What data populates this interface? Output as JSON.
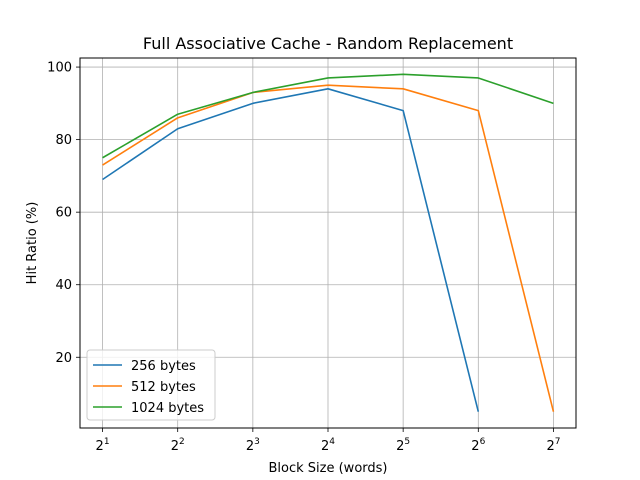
{
  "chart_data": {
    "type": "line",
    "title": "Full Associative Cache - Random Replacement",
    "xlabel": "Block Size (words)",
    "ylabel": "Hit Ratio (%)",
    "x_scale": "log2",
    "x": [
      2,
      4,
      8,
      16,
      32,
      64,
      128
    ],
    "x_ticks": [
      {
        "base": "2",
        "exp": "1"
      },
      {
        "base": "2",
        "exp": "2"
      },
      {
        "base": "2",
        "exp": "3"
      },
      {
        "base": "2",
        "exp": "4"
      },
      {
        "base": "2",
        "exp": "5"
      },
      {
        "base": "2",
        "exp": "6"
      },
      {
        "base": "2",
        "exp": "7"
      }
    ],
    "y_ticks": [
      20,
      40,
      60,
      80,
      100
    ],
    "ylim": [
      0.5,
      102.5
    ],
    "grid": true,
    "legend_position": "lower-left",
    "series": [
      {
        "name": "256 bytes",
        "color": "#1f77b4",
        "values": [
          69,
          83,
          90,
          94,
          88,
          5,
          null
        ]
      },
      {
        "name": "512 bytes",
        "color": "#ff7f0e",
        "values": [
          73,
          86,
          93,
          95,
          94,
          88,
          5
        ]
      },
      {
        "name": "1024 bytes",
        "color": "#2ca02c",
        "values": [
          75,
          87,
          93,
          97,
          98,
          97,
          90
        ]
      }
    ]
  }
}
